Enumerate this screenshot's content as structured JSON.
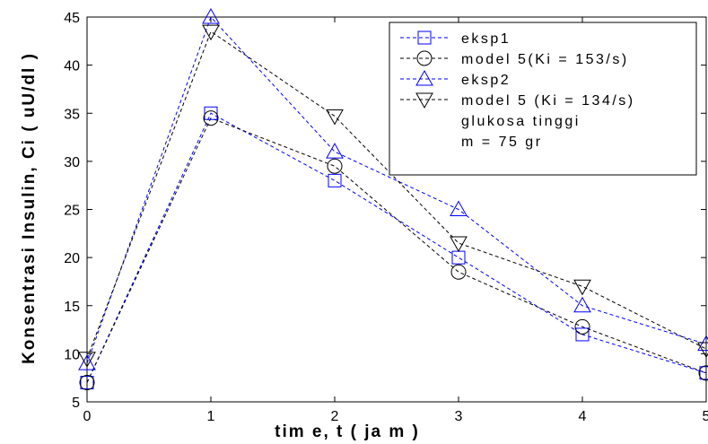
{
  "chart_data": {
    "type": "line",
    "title": "",
    "xlabel": "tim e, t ( ja m )",
    "ylabel": "Konsentrasi Insulin, Ci ( uU/dl )",
    "xlim": [
      0,
      5
    ],
    "ylim": [
      5,
      45
    ],
    "xticks": [
      0,
      1,
      2,
      3,
      4,
      5
    ],
    "yticks": [
      5,
      10,
      15,
      20,
      25,
      30,
      35,
      40,
      45
    ],
    "grid": false,
    "legend_position": "top-right",
    "series": [
      {
        "name": "eksp1",
        "marker": "square",
        "color": "#0000ff",
        "x": [
          0,
          1,
          2,
          3,
          4,
          5
        ],
        "values": [
          7,
          35,
          28,
          20,
          12,
          8
        ]
      },
      {
        "name": "model 5(Ki = 153/s)",
        "marker": "circle",
        "color": "#000000",
        "x": [
          0,
          1,
          2,
          3,
          4,
          5
        ],
        "values": [
          7,
          34.5,
          29.5,
          18.5,
          12.8,
          8
        ]
      },
      {
        "name": "eksp2",
        "marker": "triangle-up",
        "color": "#0000ff",
        "x": [
          0,
          1,
          2,
          3,
          4,
          5
        ],
        "values": [
          9,
          45,
          31,
          25,
          15,
          11
        ]
      },
      {
        "name": "model 5 (Ki = 134/s)",
        "marker": "triangle-down",
        "color": "#000000",
        "x": [
          0,
          1,
          2,
          3,
          4,
          5
        ],
        "values": [
          9.5,
          43.5,
          34.7,
          21.5,
          17,
          10.5
        ]
      }
    ],
    "legend_notes": [
      "glukosa tinggi",
      "m = 75 gr"
    ]
  }
}
